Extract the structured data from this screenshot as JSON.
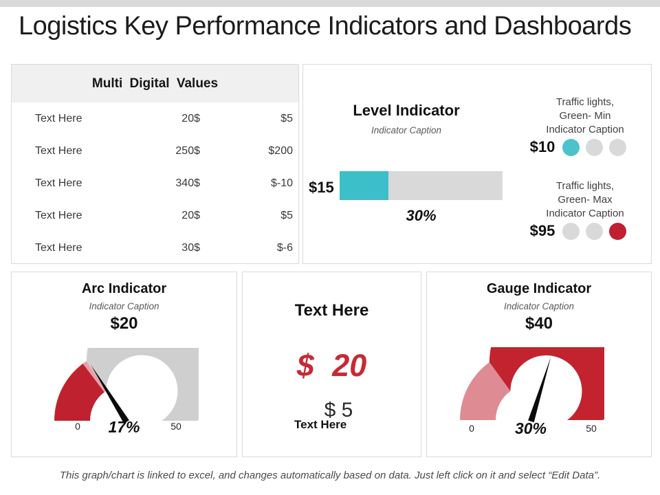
{
  "slide": {
    "title": "Logistics Key Performance Indicators and Dashboards",
    "footer": "This graph/chart is linked to excel, and changes automatically based on data.  Just left click on it and select “Edit Data”."
  },
  "colors": {
    "teal": "#3CBFC9",
    "teal_light": "#4BC2CC",
    "track_gray": "#D9D9D9",
    "red_dark": "#C0212E",
    "red_gauge": "#C2232F",
    "pink": "#DF8B94",
    "red_text": "#C52B35",
    "red_light_circle": "#C02030"
  },
  "chart_data": [
    {
      "type": "table",
      "title": "Multi Digital Values",
      "rows": [
        [
          "Text Here",
          "20$",
          "$5"
        ],
        [
          "Text Here",
          "250$",
          "$200"
        ],
        [
          "Text Here",
          "340$",
          "$-10"
        ],
        [
          "Text Here",
          "20$",
          "$5"
        ],
        [
          "Text Here",
          "30$",
          "$-6"
        ]
      ]
    },
    {
      "type": "bar",
      "title": "Level Indicator",
      "subtitle": "Indicator Caption",
      "value_label": "$15",
      "percent": 30,
      "annotation": "30%",
      "fill_width": "30%",
      "fill_color": "#3CBFC9",
      "track_color": "#D9D9D9",
      "xlim": [
        0,
        100
      ]
    },
    {
      "type": "traffic-lights",
      "caption_lines": [
        "Traffic lights,",
        "Green- Min",
        "Indicator Caption"
      ],
      "value_label": "$10",
      "lights": [
        "#4BC2CC",
        "#D9D9D9",
        "#D9D9D9"
      ],
      "active_index": 0
    },
    {
      "type": "traffic-lights",
      "caption_lines": [
        "Traffic lights,",
        "Green- Max",
        "Indicator Caption"
      ],
      "value_label": "$95",
      "lights": [
        "#D9D9D9",
        "#D9D9D9",
        "#C02030"
      ],
      "active_index": 2
    },
    {
      "type": "gauge",
      "title": "Arc Indicator",
      "subtitle": "Indicator Caption",
      "value_label": "$20",
      "percent_label": "17%",
      "min_label": "0",
      "max_label": "50",
      "axis_range": [
        0,
        50
      ],
      "needle_fraction": 0.322,
      "segments": [
        {
          "from": 0,
          "to": 0.295,
          "color": "#C0212E"
        },
        {
          "from": 0.295,
          "to": 0.315,
          "color": "#E9A2AA"
        },
        {
          "from": 0.315,
          "to": 1,
          "color": "#CFCFCF"
        }
      ]
    },
    {
      "type": "kpi-card",
      "title": "Text Here",
      "primary": "$ 20",
      "secondary": "$ 5",
      "footnote": "Text Here",
      "primary_color": "#C52B35"
    },
    {
      "type": "gauge",
      "title": "Gauge Indicator",
      "subtitle": "Indicator Caption",
      "value_label": "$40",
      "percent_label": "30%",
      "min_label": "0",
      "max_label": "50",
      "axis_range": [
        0,
        50
      ],
      "needle_fraction": 0.595,
      "segments": [
        {
          "from": 0,
          "to": 0.3,
          "color": "#DF8B94"
        },
        {
          "from": 0.3,
          "to": 1,
          "color": "#C2232F"
        }
      ]
    }
  ]
}
